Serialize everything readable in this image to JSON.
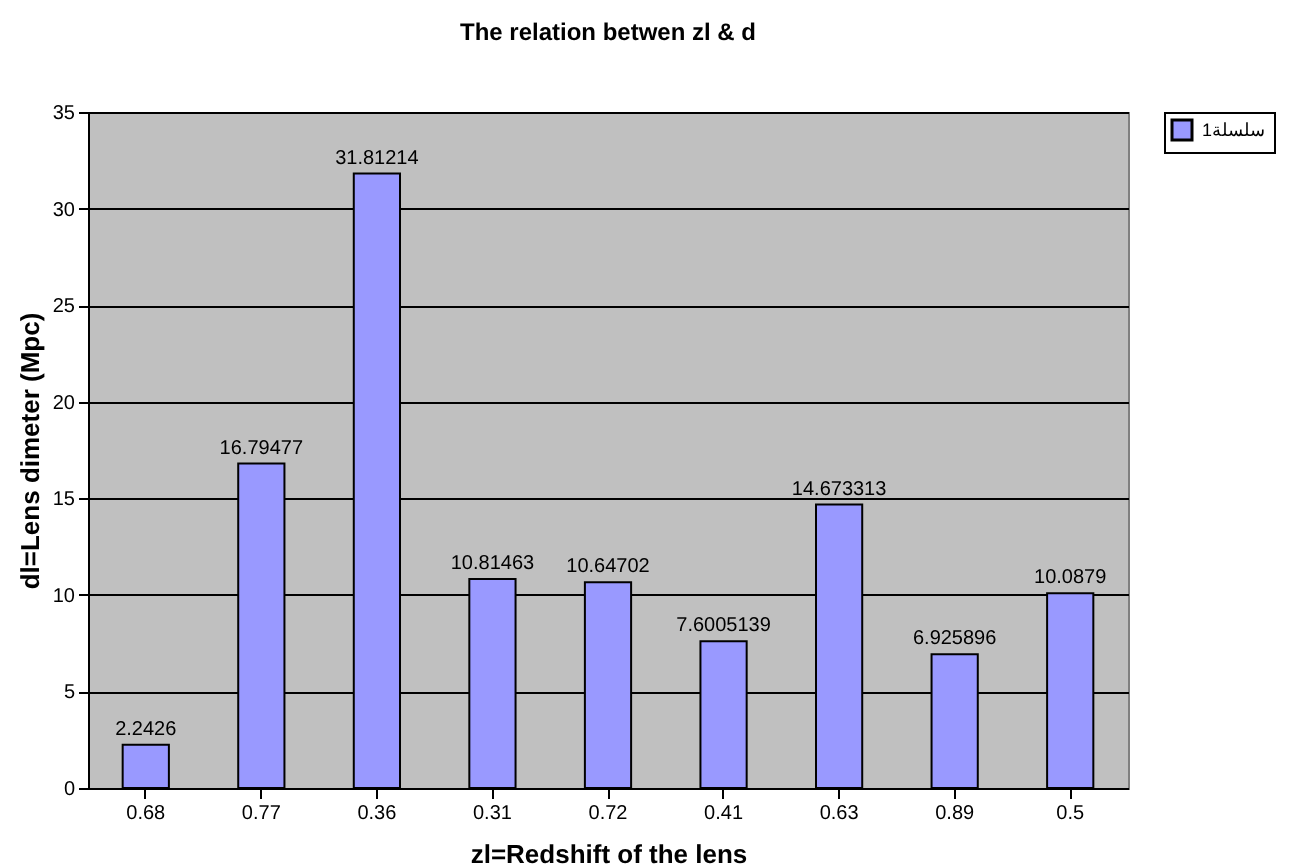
{
  "chart_data": {
    "type": "bar",
    "title": "The relation betwen zl & d",
    "xlabel": "zl=Redshift of the lens",
    "ylabel": "dl=Lens dimeter (Mpc)",
    "categories": [
      "0.68",
      "0.77",
      "0.36",
      "0.31",
      "0.72",
      "0.41",
      "0.63",
      "0.89",
      "0.5"
    ],
    "series": [
      {
        "name": "سلسلة1",
        "color": "#9999ff",
        "values": [
          2.2426,
          16.79477,
          31.81214,
          10.81463,
          10.64702,
          7.6005139,
          14.673313,
          6.925896,
          10.0879
        ]
      }
    ],
    "ylim": [
      0,
      35
    ],
    "yticks": [
      0,
      5,
      10,
      15,
      20,
      25,
      30,
      35
    ],
    "grid": "y",
    "legend": "right",
    "data_labels": true
  }
}
